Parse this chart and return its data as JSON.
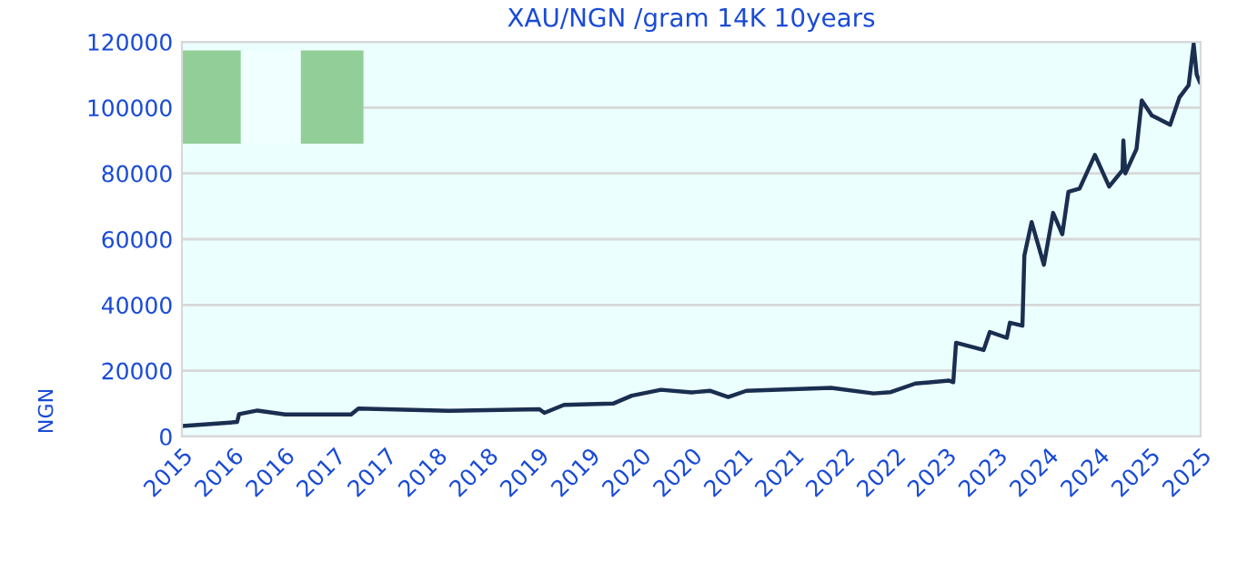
{
  "chart_data": {
    "type": "line",
    "title": "XAU/NGN /gram 14K 10years",
    "ylabel": "NGN",
    "x": [
      "2015-10-01",
      "2016-04-16",
      "2016-04-23",
      "2016-06-28",
      "2016-10-05",
      "2017-05-30",
      "2017-06-25",
      "2018-05-15",
      "2019-04-05",
      "2019-04-23",
      "2019-07-02",
      "2019-12-25",
      "2020-03-01",
      "2020-06-14",
      "2020-10-01",
      "2020-12-06",
      "2021-02-10",
      "2021-04-16",
      "2022-02-14",
      "2022-07-16",
      "2022-09-16",
      "2022-12-13",
      "2023-04-13",
      "2023-04-28",
      "2023-05-08",
      "2023-08-15",
      "2023-09-06",
      "2023-11-06",
      "2023-11-17",
      "2024-01-01",
      "2024-01-08",
      "2024-02-03",
      "2024-03-18",
      "2024-04-20",
      "2024-05-23",
      "2024-06-14",
      "2024-07-24",
      "2024-09-17",
      "2024-11-07",
      "2024-12-25",
      "2024-12-28",
      "2025-01-04",
      "2025-02-13",
      "2025-03-04",
      "2025-04-09",
      "2025-06-14",
      "2025-07-17",
      "2025-08-19",
      "2025-09-06",
      "2025-09-17",
      "2025-09-28"
    ],
    "series": [
      {
        "color": "#1a2e50",
        "values": [
          3200,
          4400,
          6800,
          7900,
          6700,
          6700,
          8500,
          7800,
          8300,
          7200,
          9600,
          10000,
          12400,
          14200,
          13400,
          13900,
          12000,
          13900,
          14800,
          13100,
          13500,
          16100,
          17000,
          16500,
          28500,
          26300,
          31800,
          30000,
          34600,
          33700,
          55000,
          65200,
          52200,
          68000,
          61500,
          74400,
          75400,
          85600,
          76000,
          81000,
          90000,
          80000,
          87400,
          102200,
          97600,
          94800,
          103100,
          106800,
          119300,
          110000,
          107800
        ]
      }
    ],
    "xlim": [
      "2015-10-01",
      "2025-10-01"
    ],
    "xticks": [
      {
        "value": "2015-10-01",
        "label": "2015"
      },
      {
        "value": "2016-04-01",
        "label": "2016"
      },
      {
        "value": "2016-10-01",
        "label": "2016"
      },
      {
        "value": "2017-04-01",
        "label": "2017"
      },
      {
        "value": "2017-10-01",
        "label": "2017"
      },
      {
        "value": "2018-04-01",
        "label": "2018"
      },
      {
        "value": "2018-10-01",
        "label": "2018"
      },
      {
        "value": "2019-04-01",
        "label": "2019"
      },
      {
        "value": "2019-10-01",
        "label": "2019"
      },
      {
        "value": "2020-04-01",
        "label": "2020"
      },
      {
        "value": "2020-10-01",
        "label": "2020"
      },
      {
        "value": "2021-04-01",
        "label": "2021"
      },
      {
        "value": "2021-10-01",
        "label": "2021"
      },
      {
        "value": "2022-04-01",
        "label": "2022"
      },
      {
        "value": "2022-10-01",
        "label": "2022"
      },
      {
        "value": "2023-04-01",
        "label": "2023"
      },
      {
        "value": "2023-10-01",
        "label": "2023"
      },
      {
        "value": "2024-04-01",
        "label": "2024"
      },
      {
        "value": "2024-10-01",
        "label": "2024"
      },
      {
        "value": "2025-04-01",
        "label": "2025"
      },
      {
        "value": "2025-10-01",
        "label": "2025"
      }
    ],
    "ylim": [
      0,
      120000
    ],
    "yticks": [
      0,
      20000,
      40000,
      60000,
      80000,
      100000,
      120000
    ],
    "grid": "y",
    "legend": false
  }
}
